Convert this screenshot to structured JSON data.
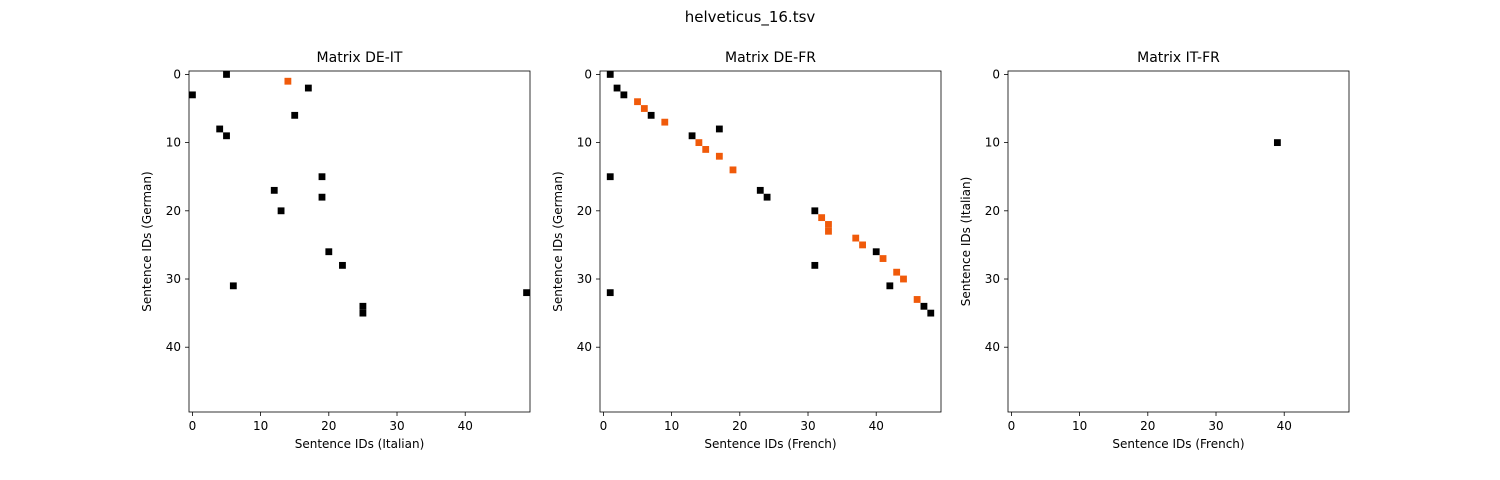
{
  "figure": {
    "title": "helveticus_16.tsv"
  },
  "colors": {
    "black": "#000000",
    "orange": "#f05a0a"
  },
  "chart_data": [
    {
      "type": "heatmap",
      "title": "Matrix DE-IT",
      "xlabel": "Sentence IDs (Italian)",
      "ylabel": "Sentence IDs (German)",
      "xlim": [
        0,
        49
      ],
      "ylim": [
        49,
        0
      ],
      "x_ticks": [
        0,
        10,
        20,
        30,
        40
      ],
      "y_ticks": [
        0,
        10,
        20,
        30,
        40
      ],
      "cells_black": [
        [
          5,
          0
        ],
        [
          0,
          3
        ],
        [
          17,
          2
        ],
        [
          15,
          6
        ],
        [
          4,
          8
        ],
        [
          5,
          9
        ],
        [
          19,
          15
        ],
        [
          12,
          17
        ],
        [
          19,
          18
        ],
        [
          13,
          20
        ],
        [
          20,
          26
        ],
        [
          22,
          28
        ],
        [
          6,
          31
        ],
        [
          49,
          32
        ],
        [
          25,
          34
        ],
        [
          25,
          35
        ]
      ],
      "cells_orange": [
        [
          14,
          1
        ]
      ]
    },
    {
      "type": "heatmap",
      "title": "Matrix DE-FR",
      "xlabel": "Sentence IDs (French)",
      "ylabel": "Sentence IDs (German)",
      "xlim": [
        0,
        49
      ],
      "ylim": [
        49,
        0
      ],
      "x_ticks": [
        0,
        10,
        20,
        30,
        40
      ],
      "y_ticks": [
        0,
        10,
        20,
        30,
        40
      ],
      "cells_black": [
        [
          1,
          0
        ],
        [
          2,
          2
        ],
        [
          3,
          3
        ],
        [
          7,
          6
        ],
        [
          13,
          9
        ],
        [
          17,
          8
        ],
        [
          1,
          15
        ],
        [
          23,
          17
        ],
        [
          24,
          18
        ],
        [
          31,
          20
        ],
        [
          40,
          26
        ],
        [
          31,
          28
        ],
        [
          42,
          31
        ],
        [
          1,
          32
        ],
        [
          47,
          34
        ],
        [
          48,
          35
        ]
      ],
      "cells_orange": [
        [
          5,
          4
        ],
        [
          6,
          5
        ],
        [
          9,
          7
        ],
        [
          14,
          10
        ],
        [
          15,
          11
        ],
        [
          17,
          12
        ],
        [
          19,
          14
        ],
        [
          32,
          21
        ],
        [
          33,
          22
        ],
        [
          33,
          23
        ],
        [
          37,
          24
        ],
        [
          38,
          25
        ],
        [
          41,
          27
        ],
        [
          43,
          29
        ],
        [
          44,
          30
        ],
        [
          46,
          33
        ]
      ]
    },
    {
      "type": "heatmap",
      "title": "Matrix IT-FR",
      "xlabel": "Sentence IDs (French)",
      "ylabel": "Sentence IDs (Italian)",
      "xlim": [
        0,
        49
      ],
      "ylim": [
        49,
        0
      ],
      "x_ticks": [
        0,
        10,
        20,
        30,
        40
      ],
      "y_ticks": [
        0,
        10,
        20,
        30,
        40
      ],
      "cells_black": [
        [
          39,
          10
        ]
      ],
      "cells_orange": []
    }
  ]
}
